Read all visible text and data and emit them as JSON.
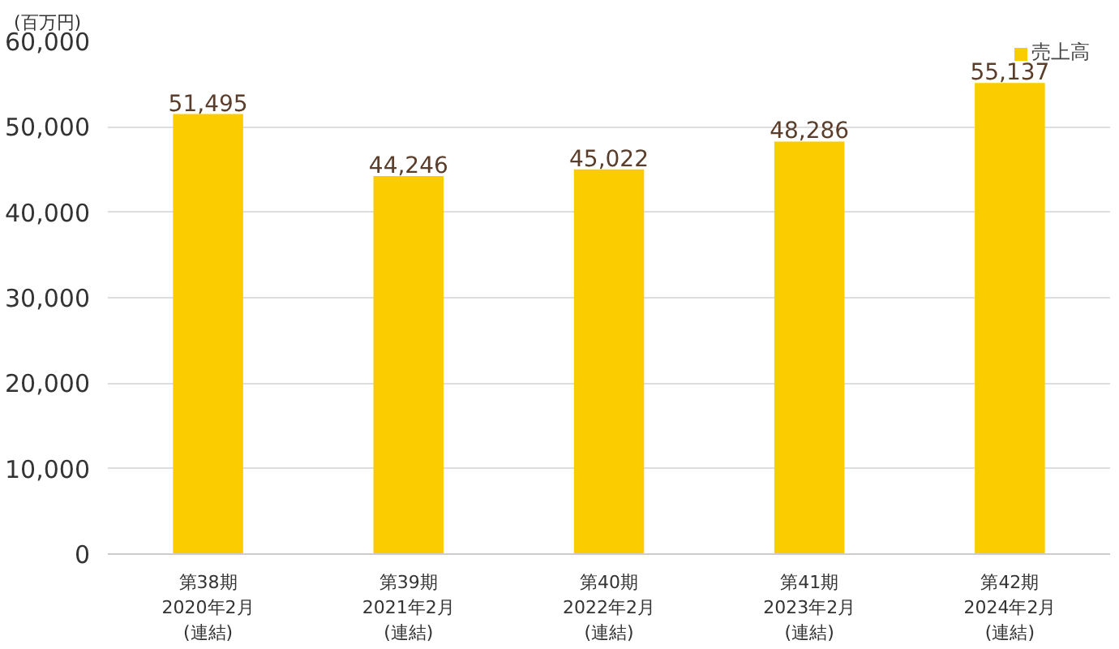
{
  "chart_data": {
    "type": "bar",
    "ylabel": "(百万円)",
    "categories": [
      "第38期\n2020年2月\n(連結)",
      "第39期\n2021年2月\n(連結)",
      "第40期\n2022年2月\n(連結)",
      "第41期\n2023年2月\n(連結)",
      "第42期\n2024年2月\n(連結)"
    ],
    "series": [
      {
        "name": "売上高",
        "color": "#fbcd00",
        "values": [
          51495,
          44246,
          45022,
          48286,
          55137
        ],
        "value_labels": [
          "51,495",
          "44,246",
          "45,022",
          "48,286",
          "55,137"
        ]
      }
    ],
    "ylim": [
      0,
      60000
    ],
    "yticks": [
      {
        "value": 0,
        "label": "0"
      },
      {
        "value": 10000,
        "label": "10,000"
      },
      {
        "value": 20000,
        "label": "20,000"
      },
      {
        "value": 30000,
        "label": "30,000"
      },
      {
        "value": 40000,
        "label": "40,000"
      },
      {
        "value": 50000,
        "label": "50,000"
      },
      {
        "value": 60000,
        "label": "60,000"
      }
    ],
    "grid": "y",
    "legend": "top right"
  }
}
